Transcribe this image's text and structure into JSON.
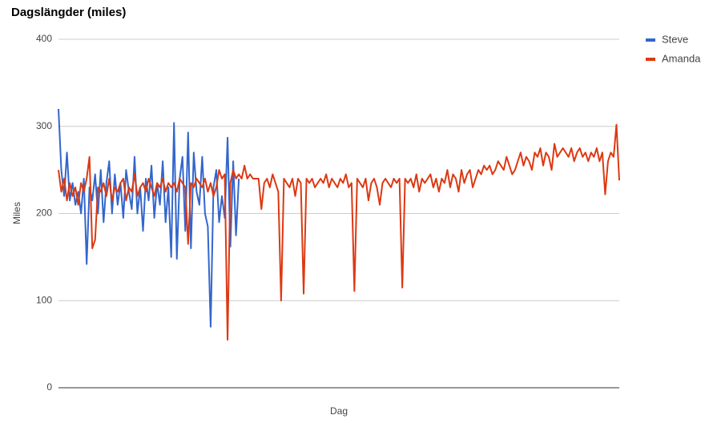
{
  "chart_data": {
    "type": "line",
    "title": "Dagslängder (miles)",
    "x_label": "Dag",
    "y_label": "Miles",
    "ylim": [
      0,
      400
    ],
    "yticks": [
      0,
      100,
      200,
      300,
      400
    ],
    "grid": true,
    "legend": "right",
    "series": [
      {
        "name": "Steve",
        "color": "#3366cc",
        "values": [
          320,
          250,
          220,
          270,
          215,
          235,
          210,
          225,
          200,
          240,
          142,
          230,
          215,
          245,
          200,
          250,
          190,
          235,
          260,
          200,
          245,
          210,
          235,
          195,
          250,
          225,
          205,
          265,
          200,
          230,
          180,
          240,
          215,
          255,
          195,
          235,
          210,
          260,
          190,
          230,
          150,
          304,
          148,
          240,
          265,
          180,
          293,
          160,
          270,
          225,
          210,
          265,
          200,
          185,
          70,
          230,
          250,
          190,
          220,
          195,
          287,
          162,
          260,
          175,
          240,
          null,
          null,
          null,
          null,
          null,
          null,
          null,
          null,
          null,
          null,
          null,
          null,
          null,
          null,
          null,
          null,
          null,
          null,
          null,
          null,
          null,
          null,
          null,
          null,
          null,
          null,
          null,
          null,
          null,
          null,
          null,
          null,
          null,
          null,
          null,
          null,
          null,
          null,
          null,
          null,
          null,
          null,
          null,
          null,
          null,
          null,
          null,
          null,
          null,
          null,
          null,
          null,
          null,
          null,
          null,
          null,
          null,
          null,
          null,
          null,
          null,
          null,
          null,
          null,
          null,
          null,
          null,
          null,
          null,
          null,
          null,
          null,
          null,
          null,
          null,
          null,
          null,
          null,
          null,
          null,
          null,
          null,
          null,
          null,
          null,
          null,
          null,
          null,
          null,
          null,
          null,
          null,
          null,
          null,
          null,
          null,
          null,
          null,
          null,
          null,
          null,
          null,
          null,
          null,
          null,
          null,
          null,
          null,
          null,
          null,
          null,
          null,
          null,
          null,
          null,
          null,
          null,
          null,
          null,
          null,
          null,
          null,
          null,
          null,
          null,
          null,
          null,
          null,
          null,
          null,
          null,
          null,
          null,
          null,
          null
        ]
      },
      {
        "name": "Amanda",
        "color": "#dc3912",
        "values": [
          250,
          225,
          240,
          215,
          235,
          220,
          230,
          210,
          235,
          225,
          240,
          265,
          160,
          170,
          230,
          225,
          235,
          220,
          240,
          215,
          230,
          225,
          235,
          240,
          215,
          230,
          225,
          245,
          220,
          230,
          235,
          225,
          240,
          230,
          220,
          235,
          230,
          240,
          225,
          235,
          230,
          235,
          225,
          240,
          235,
          230,
          165,
          235,
          230,
          240,
          235,
          230,
          240,
          225,
          235,
          220,
          230,
          250,
          240,
          245,
          55,
          235,
          250,
          240,
          245,
          240,
          255,
          240,
          245,
          240,
          240,
          240,
          205,
          235,
          240,
          230,
          245,
          235,
          225,
          100,
          240,
          235,
          230,
          240,
          220,
          240,
          235,
          108,
          240,
          235,
          240,
          230,
          235,
          240,
          235,
          245,
          230,
          240,
          235,
          230,
          240,
          235,
          245,
          230,
          235,
          111,
          240,
          235,
          230,
          240,
          215,
          235,
          240,
          230,
          210,
          235,
          240,
          235,
          230,
          240,
          235,
          240,
          115,
          240,
          235,
          240,
          230,
          245,
          225,
          240,
          235,
          240,
          245,
          230,
          240,
          225,
          240,
          235,
          250,
          230,
          245,
          240,
          225,
          250,
          235,
          245,
          250,
          230,
          240,
          250,
          245,
          255,
          250,
          255,
          245,
          250,
          260,
          255,
          250,
          265,
          255,
          245,
          250,
          260,
          270,
          255,
          265,
          260,
          250,
          270,
          265,
          275,
          255,
          270,
          265,
          250,
          280,
          265,
          270,
          275,
          270,
          265,
          275,
          260,
          270,
          275,
          265,
          270,
          260,
          270,
          265,
          275,
          260,
          270,
          222,
          260,
          270,
          265,
          302,
          238
        ]
      }
    ]
  }
}
